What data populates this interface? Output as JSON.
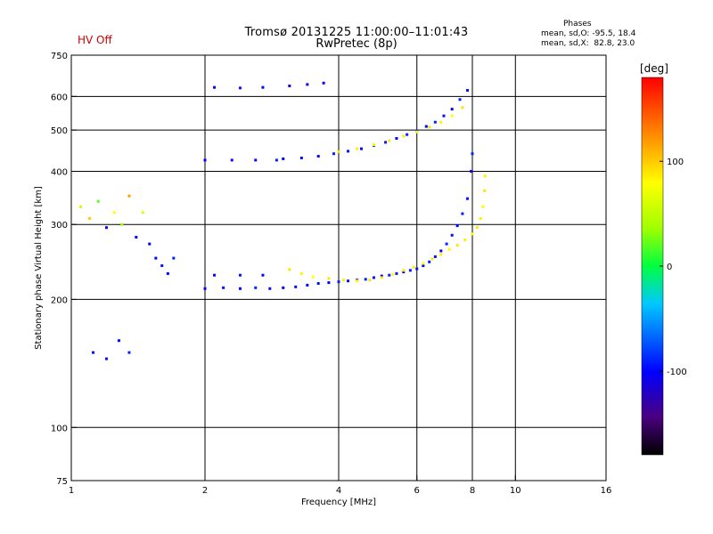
{
  "header": {
    "status": "HV Off",
    "title": "Tromsø 20131225 11:00:00–11:01:43",
    "subtitle": "RwPretec (8p)"
  },
  "phases_info": {
    "title": "Phases",
    "o_line": "mean, sd,O: -95.5, 18.4",
    "x_line": "mean, sd,X:  82.8, 23.0"
  },
  "colorbar": {
    "label": "[deg]",
    "ticks": [
      {
        "value": 100,
        "label": "100"
      },
      {
        "value": 0,
        "label": "0"
      },
      {
        "value": -100,
        "label": "-100"
      }
    ],
    "range": [
      -180,
      180
    ]
  },
  "chart_data": {
    "type": "scatter",
    "xlabel": "Frequency [MHz]",
    "ylabel": "Stationary phase Virtual Height [km]",
    "xscale": "log",
    "yscale": "log",
    "xlim": [
      1,
      16
    ],
    "ylim": [
      75,
      750
    ],
    "xticks": [
      {
        "value": 1,
        "label": "1"
      },
      {
        "value": 2,
        "label": "2"
      },
      {
        "value": 4,
        "label": "4"
      },
      {
        "value": 6,
        "label": "6"
      },
      {
        "value": 8,
        "label": "8"
      },
      {
        "value": 10,
        "label": "10"
      },
      {
        "value": 16,
        "label": "16"
      }
    ],
    "yticks": [
      {
        "value": 75,
        "label": "75"
      },
      {
        "value": 100,
        "label": "100"
      },
      {
        "value": 200,
        "label": "200"
      },
      {
        "value": 300,
        "label": "300"
      },
      {
        "value": 400,
        "label": "400"
      },
      {
        "value": 500,
        "label": "500"
      },
      {
        "value": 600,
        "label": "600"
      },
      {
        "value": 750,
        "label": "750"
      }
    ],
    "gridlines_x": [
      2,
      4,
      6,
      8,
      10
    ],
    "gridlines_y": [
      100,
      200,
      300,
      400,
      500,
      600
    ],
    "color_scale": "rainbow phase [deg], -180 (black) to 180 (red)",
    "series": [
      {
        "ridge": "O-mode F1/F2 trace",
        "points": [
          [
            3.0,
            213,
            -100
          ],
          [
            3.2,
            214,
            -95
          ],
          [
            3.4,
            216,
            -100
          ],
          [
            3.6,
            218,
            -95
          ],
          [
            3.8,
            219,
            -100
          ],
          [
            4.0,
            220,
            -90
          ],
          [
            4.2,
            221,
            -95
          ],
          [
            4.4,
            222,
            -100
          ],
          [
            4.6,
            223,
            -90
          ],
          [
            4.8,
            225,
            -95
          ],
          [
            5.0,
            227,
            -100
          ],
          [
            5.2,
            228,
            -90
          ],
          [
            5.4,
            230,
            -95
          ],
          [
            5.6,
            232,
            -100
          ],
          [
            5.8,
            234,
            -90
          ],
          [
            6.0,
            236,
            -95
          ],
          [
            6.2,
            240,
            -100
          ],
          [
            6.4,
            245,
            -90
          ],
          [
            6.6,
            252,
            -95
          ],
          [
            6.8,
            260,
            -100
          ],
          [
            7.0,
            270,
            -90
          ],
          [
            7.2,
            283,
            -95
          ],
          [
            7.4,
            298,
            -100
          ],
          [
            7.6,
            318,
            -90
          ],
          [
            7.8,
            345,
            -95
          ],
          [
            7.95,
            400,
            -100
          ],
          [
            8.0,
            440,
            -90
          ]
        ]
      },
      {
        "ridge": "X-mode F trace",
        "points": [
          [
            3.1,
            235,
            90
          ],
          [
            3.3,
            230,
            85
          ],
          [
            3.5,
            226,
            80
          ],
          [
            3.8,
            224,
            90
          ],
          [
            4.1,
            222,
            85
          ],
          [
            4.4,
            221,
            80
          ],
          [
            4.7,
            222,
            90
          ],
          [
            5.0,
            225,
            85
          ],
          [
            5.3,
            229,
            80
          ],
          [
            5.6,
            234,
            90
          ],
          [
            5.9,
            238,
            85
          ],
          [
            6.2,
            243,
            80
          ],
          [
            6.5,
            249,
            90
          ],
          [
            6.8,
            255,
            85
          ],
          [
            7.1,
            262,
            80
          ],
          [
            7.4,
            268,
            90
          ],
          [
            7.7,
            276,
            85
          ],
          [
            8.0,
            285,
            80
          ],
          [
            8.2,
            295,
            90
          ],
          [
            8.35,
            310,
            85
          ],
          [
            8.45,
            330,
            80
          ],
          [
            8.52,
            360,
            90
          ],
          [
            8.55,
            390,
            85
          ]
        ]
      },
      {
        "ridge": "second-hop O trace",
        "points": [
          [
            3.0,
            428,
            -100
          ],
          [
            3.3,
            430,
            -95
          ],
          [
            3.6,
            434,
            -100
          ],
          [
            3.9,
            440,
            -90
          ],
          [
            4.2,
            446,
            -95
          ],
          [
            4.5,
            452,
            -100
          ],
          [
            4.8,
            460,
            -90
          ],
          [
            5.1,
            468,
            -95
          ],
          [
            5.4,
            478,
            -100
          ],
          [
            5.7,
            488,
            -90
          ],
          [
            6.0,
            498,
            -95
          ],
          [
            6.3,
            510,
            -100
          ],
          [
            6.6,
            522,
            -90
          ],
          [
            6.9,
            540,
            -95
          ],
          [
            7.2,
            560,
            -100
          ],
          [
            7.5,
            590,
            -90
          ],
          [
            7.8,
            620,
            -95
          ]
        ]
      },
      {
        "ridge": "second-hop X trace",
        "points": [
          [
            4.0,
            445,
            90
          ],
          [
            4.4,
            452,
            85
          ],
          [
            4.8,
            462,
            80
          ],
          [
            5.2,
            472,
            90
          ],
          [
            5.6,
            484,
            85
          ],
          [
            6.0,
            495,
            80
          ],
          [
            6.4,
            508,
            90
          ],
          [
            6.8,
            522,
            85
          ],
          [
            7.2,
            540,
            80
          ],
          [
            7.6,
            565,
            90
          ]
        ]
      },
      {
        "ridge": "low-frequency E/F1 clusters",
        "points": [
          [
            1.05,
            330,
            60
          ],
          [
            1.1,
            310,
            100
          ],
          [
            1.15,
            340,
            20
          ],
          [
            1.2,
            295,
            -100
          ],
          [
            1.25,
            320,
            80
          ],
          [
            1.3,
            300,
            40
          ],
          [
            1.35,
            350,
            120
          ],
          [
            1.4,
            280,
            -100
          ],
          [
            1.45,
            320,
            60
          ],
          [
            1.5,
            270,
            -105
          ],
          [
            1.55,
            250,
            -100
          ],
          [
            1.6,
            240,
            -95
          ],
          [
            1.65,
            230,
            -100
          ],
          [
            1.7,
            250,
            -90
          ],
          [
            1.12,
            150,
            -100
          ],
          [
            1.2,
            145,
            -95
          ],
          [
            1.28,
            160,
            -100
          ],
          [
            1.35,
            150,
            -90
          ],
          [
            2.0,
            212,
            -100
          ],
          [
            2.2,
            213,
            -95
          ],
          [
            2.4,
            212,
            -100
          ],
          [
            2.6,
            213,
            -90
          ],
          [
            2.8,
            212,
            -95
          ],
          [
            2.1,
            228,
            -100
          ],
          [
            2.4,
            228,
            -95
          ],
          [
            2.7,
            228,
            -100
          ],
          [
            2.0,
            425,
            -100
          ],
          [
            2.3,
            425,
            -95
          ],
          [
            2.6,
            425,
            -100
          ],
          [
            2.9,
            425,
            -90
          ],
          [
            2.1,
            630,
            -100
          ],
          [
            2.4,
            628,
            -95
          ],
          [
            2.7,
            630,
            -100
          ],
          [
            3.1,
            635,
            -110
          ],
          [
            3.4,
            640,
            -110
          ],
          [
            3.7,
            645,
            -110
          ]
        ]
      }
    ]
  }
}
